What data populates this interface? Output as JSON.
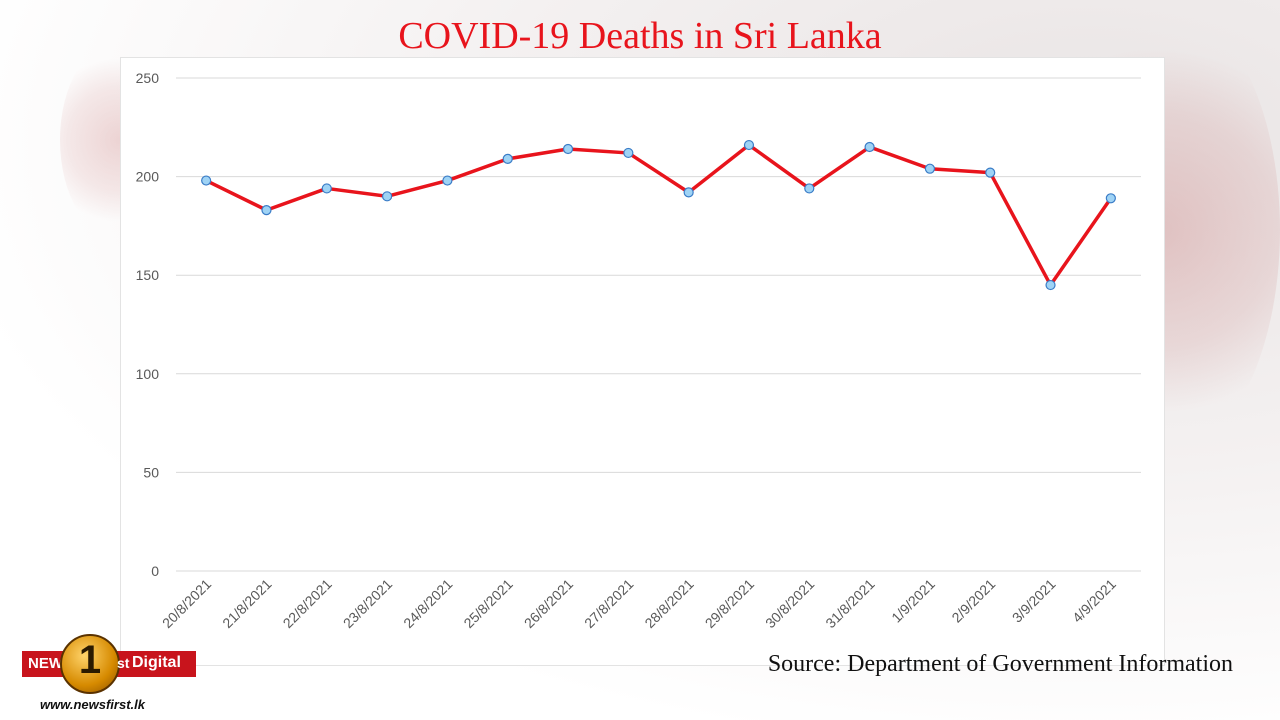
{
  "page": {
    "title": "COVID-19 Deaths in Sri Lanka",
    "source": "Source: Department of Government Information",
    "logo": {
      "news": "NEWS",
      "one": "1",
      "st": "st",
      "digital": "Digital",
      "url": "www.newsfirst.lk"
    }
  },
  "chart_data": {
    "type": "line",
    "title": "COVID-19 Deaths in Sri Lanka",
    "xlabel": "",
    "ylabel": "",
    "categories": [
      "20/8/2021",
      "21/8/2021",
      "22/8/2021",
      "23/8/2021",
      "24/8/2021",
      "25/8/2021",
      "26/8/2021",
      "27/8/2021",
      "28/8/2021",
      "29/8/2021",
      "30/8/2021",
      "31/8/2021",
      "1/9/2021",
      "2/9/2021",
      "3/9/2021",
      "4/9/2021"
    ],
    "series": [
      {
        "values": [
          198,
          183,
          194,
          190,
          198,
          209,
          214,
          212,
          192,
          216,
          194,
          215,
          204,
          202,
          145,
          189
        ]
      }
    ],
    "ylim": [
      0,
      250
    ],
    "yticks": [
      0,
      50,
      100,
      150,
      200,
      250
    ],
    "grid": true,
    "legend": "none",
    "colors": {
      "line": "#e8141c",
      "marker_fill": "#9fd3f5",
      "marker_stroke": "#3a7cc7",
      "grid": "#d9d9d9",
      "tick_text": "#595959"
    }
  }
}
